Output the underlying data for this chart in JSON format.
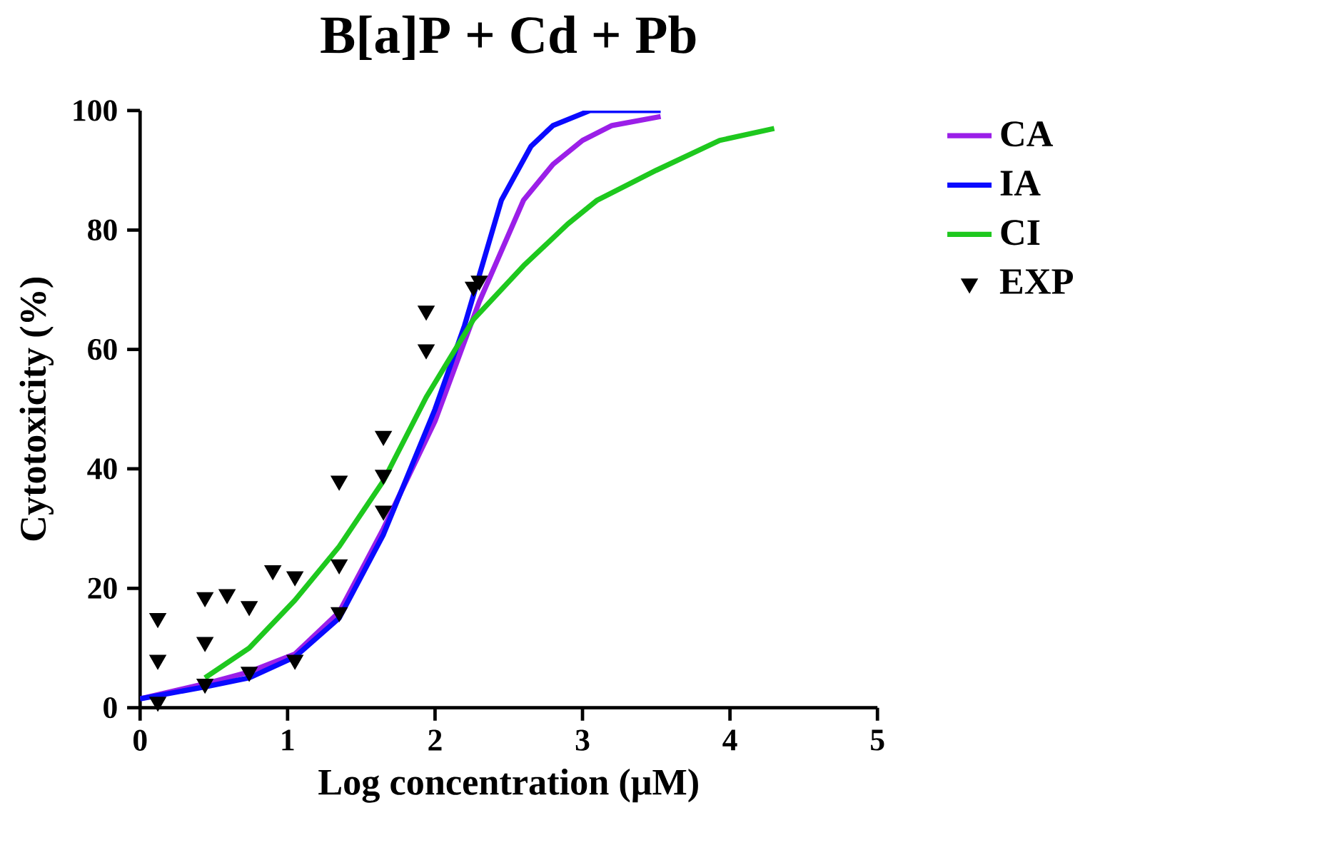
{
  "chart_data": {
    "type": "line",
    "title": "B[a]P + Cd + Pb",
    "xlabel": "Log concentration (μM)",
    "ylabel": "Cytotoxicity (%)",
    "xlim": [
      0,
      5
    ],
    "ylim": [
      0,
      100
    ],
    "xticks": [
      0,
      1,
      2,
      3,
      4,
      5
    ],
    "yticks": [
      0,
      20,
      40,
      60,
      80,
      100
    ],
    "grid": false,
    "legend": "right",
    "series": [
      {
        "name": "CA",
        "color": "#9b1fe8",
        "x": [
          0,
          0.44,
          0.74,
          1.05,
          1.35,
          1.65,
          2.0,
          2.3,
          2.6,
          2.8,
          3.0,
          3.2,
          3.53
        ],
        "values": [
          1.5,
          4,
          6,
          9,
          16,
          30,
          48,
          68,
          85,
          91,
          95,
          97.5,
          99
        ]
      },
      {
        "name": "IA",
        "color": "#0a0aff",
        "x": [
          0,
          0.44,
          0.74,
          1.05,
          1.35,
          1.65,
          2.0,
          2.2,
          2.45,
          2.65,
          2.8,
          3.05,
          3.53
        ],
        "values": [
          1.5,
          3.5,
          5,
          8.5,
          15,
          29,
          50,
          64,
          85,
          94,
          97.5,
          100,
          100
        ]
      },
      {
        "name": "CI",
        "color": "#1ec81e",
        "x": [
          0.44,
          0.74,
          1.05,
          1.35,
          1.65,
          1.94,
          2.26,
          2.6,
          2.9,
          3.1,
          3.5,
          3.93,
          4.3
        ],
        "values": [
          5,
          10,
          18,
          27,
          38,
          52,
          65,
          74,
          81,
          85,
          90,
          95,
          97
        ]
      },
      {
        "name": "EXP",
        "type": "scatter",
        "marker": "triangle",
        "color": "#000000",
        "x": [
          0.12,
          0.12,
          0.12,
          0.44,
          0.44,
          0.44,
          0.59,
          0.74,
          0.74,
          0.9,
          1.05,
          1.05,
          1.35,
          1.35,
          1.35,
          1.65,
          1.65,
          1.65,
          1.94,
          1.94,
          2.26,
          2.3
        ],
        "values": [
          15,
          8,
          1,
          18.5,
          11,
          4,
          19,
          17,
          6,
          23,
          22,
          8,
          38,
          24,
          16,
          45.5,
          39,
          33,
          66.5,
          60,
          70.5,
          71.5
        ]
      }
    ]
  }
}
